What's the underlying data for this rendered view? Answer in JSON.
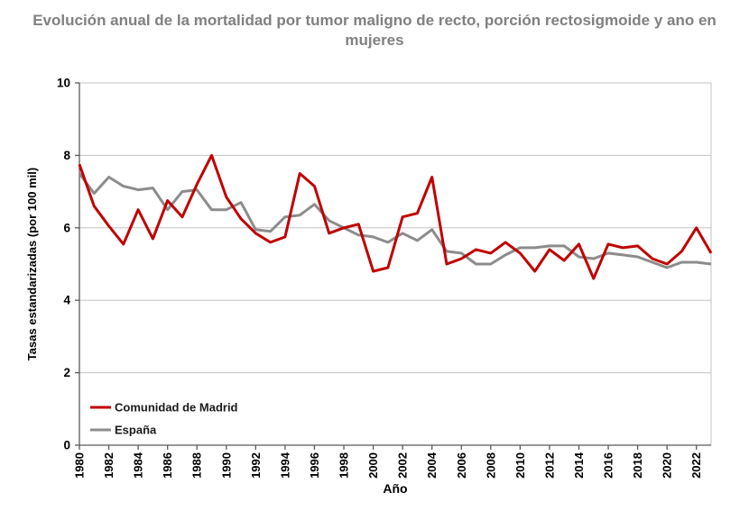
{
  "title": "Evolución anual de la mortalidad por tumor maligno de recto, porción rectosigmoide y ano en mujeres",
  "colors": {
    "madrid": "#C00000",
    "espana": "#8C8C8C",
    "title_text": "#808080",
    "grid": "#C3C3C3",
    "axis": "#595959",
    "tick_text": "#000000",
    "legend_text": "#1A1A1A",
    "plot_border": "#C3C3C3"
  },
  "chart_data": {
    "type": "line",
    "title": "Evolución anual de la mortalidad por tumor maligno de recto, porción rectosigmoide y ano en mujeres",
    "xlabel": "Año",
    "ylabel": "Tasas estandarizadas (por 100 mil)",
    "xlim": [
      1980,
      2023
    ],
    "ylim": [
      0,
      10
    ],
    "y_ticks": [
      0,
      2,
      4,
      6,
      8,
      10
    ],
    "x_ticks": [
      1980,
      1982,
      1984,
      1986,
      1988,
      1990,
      1992,
      1994,
      1996,
      1998,
      2000,
      2002,
      2004,
      2006,
      2008,
      2010,
      2012,
      2014,
      2016,
      2018,
      2020,
      2022
    ],
    "grid": "horizontal",
    "legend_position": "inside-bottom-left",
    "x": [
      1980,
      1981,
      1982,
      1983,
      1984,
      1985,
      1986,
      1987,
      1988,
      1989,
      1990,
      1991,
      1992,
      1993,
      1994,
      1995,
      1996,
      1997,
      1998,
      1999,
      2000,
      2001,
      2002,
      2003,
      2004,
      2005,
      2006,
      2007,
      2008,
      2009,
      2010,
      2011,
      2012,
      2013,
      2014,
      2015,
      2016,
      2017,
      2018,
      2019,
      2020,
      2021,
      2022,
      2023
    ],
    "series": [
      {
        "name": "Comunidad de Madrid",
        "key": "madrid",
        "values": [
          7.75,
          6.6,
          6.05,
          5.55,
          6.5,
          5.7,
          6.75,
          6.3,
          7.2,
          8.0,
          6.85,
          6.25,
          5.85,
          5.6,
          5.75,
          7.5,
          7.15,
          5.85,
          6.0,
          6.1,
          4.8,
          4.9,
          6.3,
          6.4,
          7.4,
          5.0,
          5.15,
          5.4,
          5.3,
          5.6,
          5.3,
          4.8,
          5.4,
          5.1,
          5.55,
          4.6,
          5.55,
          5.45,
          5.5,
          5.15,
          5.0,
          5.35,
          6.0,
          5.3
        ]
      },
      {
        "name": "España",
        "key": "espana",
        "values": [
          7.5,
          6.95,
          7.4,
          7.15,
          7.05,
          7.1,
          6.5,
          7.0,
          7.05,
          6.5,
          6.5,
          6.7,
          5.95,
          5.9,
          6.3,
          6.35,
          6.65,
          6.2,
          6.0,
          5.8,
          5.75,
          5.6,
          5.85,
          5.65,
          5.95,
          5.35,
          5.3,
          5.0,
          5.0,
          5.25,
          5.45,
          5.45,
          5.5,
          5.5,
          5.2,
          5.15,
          5.3,
          5.25,
          5.2,
          5.05,
          4.9,
          5.05,
          5.05,
          5.0
        ]
      }
    ]
  }
}
